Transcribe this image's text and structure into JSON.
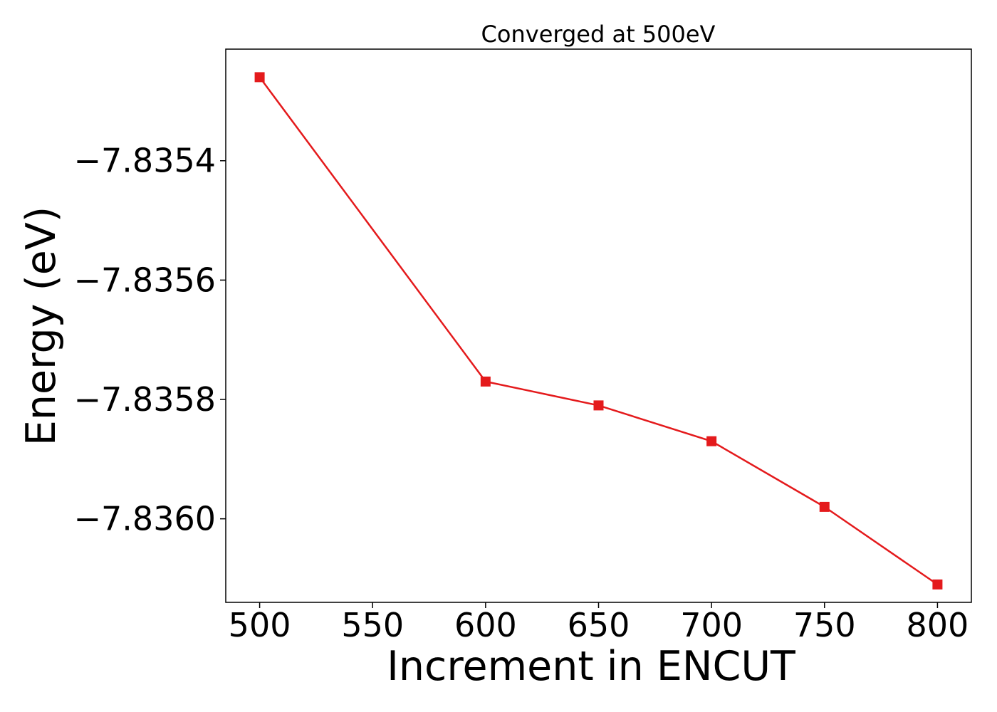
{
  "chart_data": {
    "type": "line",
    "title": "Converged at 500eV",
    "xlabel": "Increment in ENCUT",
    "ylabel": "Energy (eV)",
    "x": [
      500,
      600,
      650,
      700,
      750,
      800
    ],
    "series": [
      {
        "values": [
          -7.83526,
          -7.83577,
          -7.83581,
          -7.83587,
          -7.83598,
          -7.83611
        ],
        "color": "#e41a1c",
        "marker": "square"
      }
    ],
    "xticks": [
      500,
      550,
      600,
      650,
      700,
      750,
      800
    ],
    "xtick_labels": [
      "500",
      "550",
      "600",
      "650",
      "700",
      "750",
      "800"
    ],
    "yticks": [
      -7.8354,
      -7.8356,
      -7.8358,
      -7.836
    ],
    "ytick_labels": [
      "−7.8354",
      "−7.8356",
      "−7.8358",
      "−7.8360"
    ],
    "xlim": [
      485,
      815
    ],
    "ylim": [
      -7.83614,
      -7.835213
    ],
    "grid": false,
    "legend": false
  }
}
